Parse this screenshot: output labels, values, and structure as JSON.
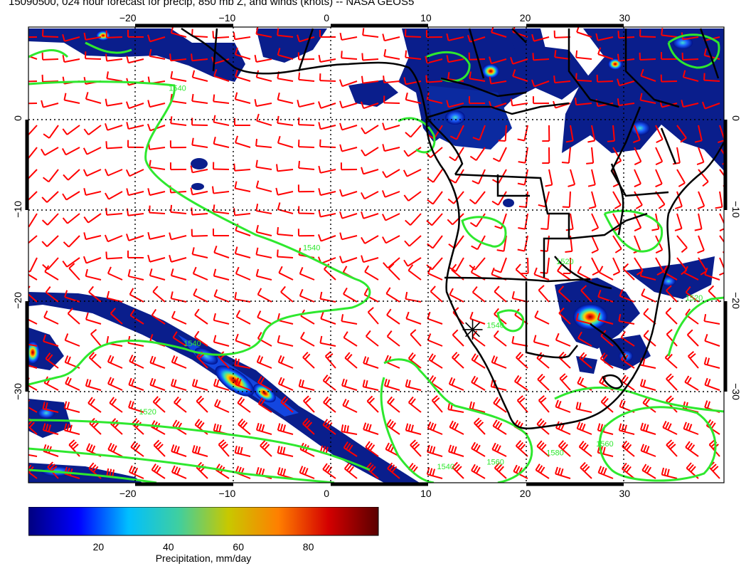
{
  "title": "15090500, 024 hour forecast for precip, 850 mb Z, and winds (knots) -- NASA GEOS5",
  "map": {
    "lon_range": [
      -30,
      40
    ],
    "lat_range": [
      -40,
      10
    ],
    "lon_ticks": [
      {
        "value": -20,
        "label": "−20"
      },
      {
        "value": -10,
        "label": "−10"
      },
      {
        "value": 0,
        "label": "0"
      },
      {
        "value": 10,
        "label": "10"
      },
      {
        "value": 20,
        "label": "20"
      },
      {
        "value": 30,
        "label": "30"
      }
    ],
    "lat_ticks": [
      {
        "value": 0,
        "label": "0"
      },
      {
        "value": -10,
        "label": "−10"
      },
      {
        "value": -20,
        "label": "−20"
      },
      {
        "value": -30,
        "label": "−30"
      }
    ],
    "contour_labels": [
      {
        "text": "1540",
        "lon": -15,
        "lat": 3
      },
      {
        "text": "1540",
        "lon": -1.5,
        "lat": -14.5
      },
      {
        "text": "1540",
        "lon": -13.5,
        "lat": -25
      },
      {
        "text": "1520",
        "lon": -18,
        "lat": -32.5
      },
      {
        "text": "1540",
        "lon": 17,
        "lat": -23
      },
      {
        "text": "1520",
        "lon": 24,
        "lat": -16
      },
      {
        "text": "1520",
        "lon": 37,
        "lat": -20
      },
      {
        "text": "1580",
        "lon": 23,
        "lat": -37
      },
      {
        "text": "1560",
        "lon": 17,
        "lat": -38
      },
      {
        "text": "1540",
        "lon": 12,
        "lat": -38.5
      },
      {
        "text": "1560",
        "lon": 28,
        "lat": -36
      }
    ],
    "marker": {
      "type": "star",
      "lon": 14.7,
      "lat": -23.2
    },
    "colors": {
      "wind": "#ff0000",
      "contour": "#2ee82e",
      "coast": "#000000",
      "grid": "#000000"
    }
  },
  "colorbar": {
    "label": "Precipitation, mm/day",
    "ticks": [
      {
        "value": 20,
        "label": "20"
      },
      {
        "value": 40,
        "label": "40"
      },
      {
        "value": 60,
        "label": "60"
      },
      {
        "value": 80,
        "label": "80"
      }
    ],
    "range": [
      0,
      100
    ],
    "stops": [
      "#00007f",
      "#0000ff",
      "#00bfff",
      "#3fcfa0",
      "#c8c800",
      "#ff7f00",
      "#d40000",
      "#5a0000"
    ]
  }
}
